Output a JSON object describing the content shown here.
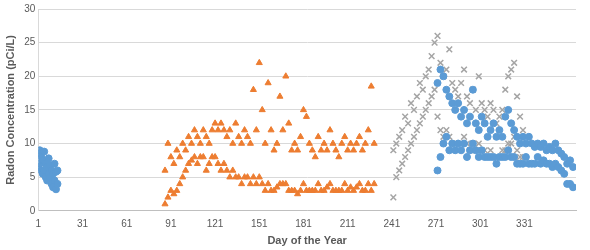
{
  "chart_data": {
    "type": "scatter",
    "x_label": "Day of the Year",
    "y_label": "Radon Concentration (pCi/L)",
    "xlim": [
      1,
      366
    ],
    "xticks": [
      1,
      31,
      61,
      91,
      121,
      151,
      181,
      211,
      241,
      271,
      301,
      331
    ],
    "ylim": [
      0,
      30
    ],
    "yticks": [
      0,
      5,
      10,
      15,
      20,
      25,
      30
    ],
    "grid": true,
    "series": [
      {
        "color": "#5b9bd5",
        "marker": "circle",
        "x": [
          1,
          1,
          2,
          2,
          3,
          3,
          4,
          4,
          5,
          5,
          6,
          6,
          7,
          7,
          8,
          8,
          9,
          9,
          10,
          10,
          11,
          11,
          12,
          12,
          13,
          13,
          14,
          14,
          272,
          272,
          274,
          274,
          276,
          276,
          278,
          278,
          280,
          280,
          282,
          282,
          284,
          284,
          286,
          286,
          288,
          288,
          290,
          290,
          292,
          292,
          294,
          294,
          296,
          296,
          298,
          298,
          300,
          300,
          302,
          302,
          304,
          304,
          306,
          306,
          308,
          308,
          310,
          310,
          312,
          312,
          314,
          314,
          316,
          316,
          318,
          318,
          320,
          320,
          322,
          322,
          324,
          324,
          326,
          326,
          328,
          328,
          330,
          330,
          332,
          332,
          334,
          334,
          336,
          336,
          338,
          338,
          340,
          340,
          342,
          342,
          344,
          344,
          346,
          346,
          348,
          348,
          350,
          350,
          352,
          352,
          354,
          354,
          356,
          356,
          358,
          358,
          360,
          360,
          362,
          362,
          364,
          364
        ],
        "values": [
          8.5,
          6.5,
          9,
          7,
          8,
          6,
          7.5,
          5.5,
          8.8,
          6,
          7,
          5,
          6.5,
          4.5,
          7.8,
          5.5,
          6.8,
          5,
          6,
          4,
          5.5,
          3.5,
          7,
          4.5,
          5.8,
          3.2,
          6,
          4,
          19,
          6,
          21,
          8,
          20,
          10,
          18,
          11,
          17,
          9,
          16,
          10,
          15,
          9,
          16,
          10,
          14,
          9,
          15,
          10,
          13,
          8,
          14,
          9,
          18,
          10,
          13,
          9,
          12,
          8,
          14,
          9,
          13,
          8,
          11,
          8,
          12,
          8,
          13,
          8,
          11,
          7,
          12,
          8,
          11,
          8,
          14,
          8,
          15,
          9,
          13,
          8,
          12,
          8,
          11,
          7,
          10,
          7,
          11,
          7,
          10,
          8,
          11,
          7,
          10,
          7,
          9.5,
          7,
          10,
          8,
          9.5,
          7,
          10,
          7.5,
          9,
          7,
          9.5,
          7,
          9,
          6.5,
          10,
          7,
          9,
          6.5,
          8.5,
          6,
          8,
          5.5,
          7,
          4,
          7.5,
          4,
          6.5,
          3.5
        ]
      },
      {
        "color": "#ed7d31",
        "marker": "triangle",
        "x": [
          87,
          87,
          89,
          89,
          91,
          91,
          93,
          93,
          95,
          95,
          97,
          97,
          99,
          99,
          101,
          101,
          103,
          103,
          105,
          105,
          107,
          107,
          109,
          109,
          111,
          111,
          113,
          113,
          115,
          115,
          117,
          117,
          119,
          119,
          121,
          121,
          123,
          123,
          125,
          125,
          127,
          127,
          129,
          129,
          131,
          131,
          133,
          133,
          135,
          135,
          137,
          137,
          139,
          139,
          141,
          141,
          143,
          143,
          145,
          145,
          147,
          147,
          149,
          149,
          151,
          151,
          153,
          153,
          155,
          155,
          157,
          157,
          159,
          159,
          161,
          161,
          163,
          163,
          165,
          165,
          167,
          167,
          169,
          169,
          171,
          171,
          173,
          173,
          175,
          175,
          177,
          177,
          179,
          179,
          181,
          181,
          183,
          183,
          185,
          185,
          187,
          187,
          189,
          189,
          191,
          191,
          193,
          193,
          195,
          195,
          197,
          197,
          199,
          199,
          201,
          201,
          203,
          203,
          205,
          205,
          207,
          207,
          209,
          209,
          211,
          211,
          213,
          213,
          215,
          215,
          217,
          217,
          219,
          219,
          221,
          221,
          223,
          223,
          225,
          225,
          227,
          227,
          229,
          229
        ],
        "values": [
          6,
          1,
          10,
          2,
          8,
          3,
          7,
          2.5,
          9,
          3,
          8,
          4,
          10,
          5,
          9,
          6,
          11,
          7,
          10,
          7.5,
          12,
          8,
          11,
          7,
          10,
          8,
          12,
          8,
          11,
          6,
          10,
          7,
          12,
          8,
          13,
          8,
          12,
          7,
          13,
          6,
          12,
          7,
          11,
          6,
          12,
          5,
          10,
          6,
          13,
          5,
          11,
          5,
          10,
          4,
          12,
          5,
          11,
          5,
          10,
          4,
          18,
          5,
          12,
          4,
          22,
          5,
          15,
          4,
          10,
          3,
          19,
          4,
          12,
          3,
          9,
          3,
          10,
          3.5,
          17,
          4,
          12,
          4,
          20,
          4,
          13,
          3,
          9,
          3,
          10,
          3,
          9,
          2.5,
          11,
          3,
          15,
          4,
          14,
          3,
          10,
          3,
          9,
          3,
          8,
          3,
          11,
          4,
          9,
          3,
          10,
          3,
          9,
          3.5,
          12,
          4,
          10,
          3,
          9,
          3,
          8,
          3,
          10,
          3,
          11,
          4,
          9,
          3,
          10,
          3.5,
          9,
          3,
          10,
          3.5,
          11,
          4,
          9,
          3,
          10,
          3,
          12,
          4,
          18.5,
          3,
          10,
          4
        ]
      },
      {
        "color": "#a5a5a5",
        "marker": "x",
        "x": [
          242,
          242,
          244,
          244,
          246,
          246,
          248,
          248,
          250,
          250,
          252,
          252,
          254,
          254,
          256,
          256,
          258,
          258,
          260,
          260,
          262,
          262,
          264,
          264,
          266,
          266,
          268,
          268,
          270,
          270,
          272,
          272,
          274,
          274,
          276,
          276,
          278,
          278,
          280,
          280,
          282,
          282,
          284,
          284,
          286,
          286,
          288,
          288,
          290,
          290,
          292,
          292,
          294,
          294,
          296,
          296,
          298,
          298,
          300,
          300,
          302,
          302,
          304,
          304,
          306,
          306,
          308,
          308,
          310,
          310,
          312,
          312,
          314,
          314,
          316,
          316,
          318,
          318,
          320,
          320,
          322,
          322,
          324,
          324,
          326,
          326,
          328,
          328,
          330,
          330
        ],
        "values": [
          9,
          2,
          10,
          5,
          11,
          6,
          12,
          7,
          14,
          8,
          13,
          9,
          16,
          10,
          15,
          11,
          17,
          12,
          19,
          13,
          18,
          14,
          20,
          15,
          21,
          16,
          23,
          17,
          25,
          18,
          26,
          14,
          22,
          12,
          20,
          11,
          21,
          12,
          24,
          11,
          19,
          10,
          18,
          10,
          17,
          9,
          19,
          10,
          21,
          11,
          17,
          10,
          16,
          9,
          18,
          10,
          15,
          9,
          20,
          10,
          16,
          9,
          15,
          9,
          14,
          8,
          16,
          9,
          15,
          8,
          13,
          8,
          14,
          8,
          15,
          9,
          18,
          9,
          20,
          10,
          21,
          10,
          22,
          11,
          17,
          9,
          14,
          8,
          12,
          8
        ]
      }
    ]
  }
}
